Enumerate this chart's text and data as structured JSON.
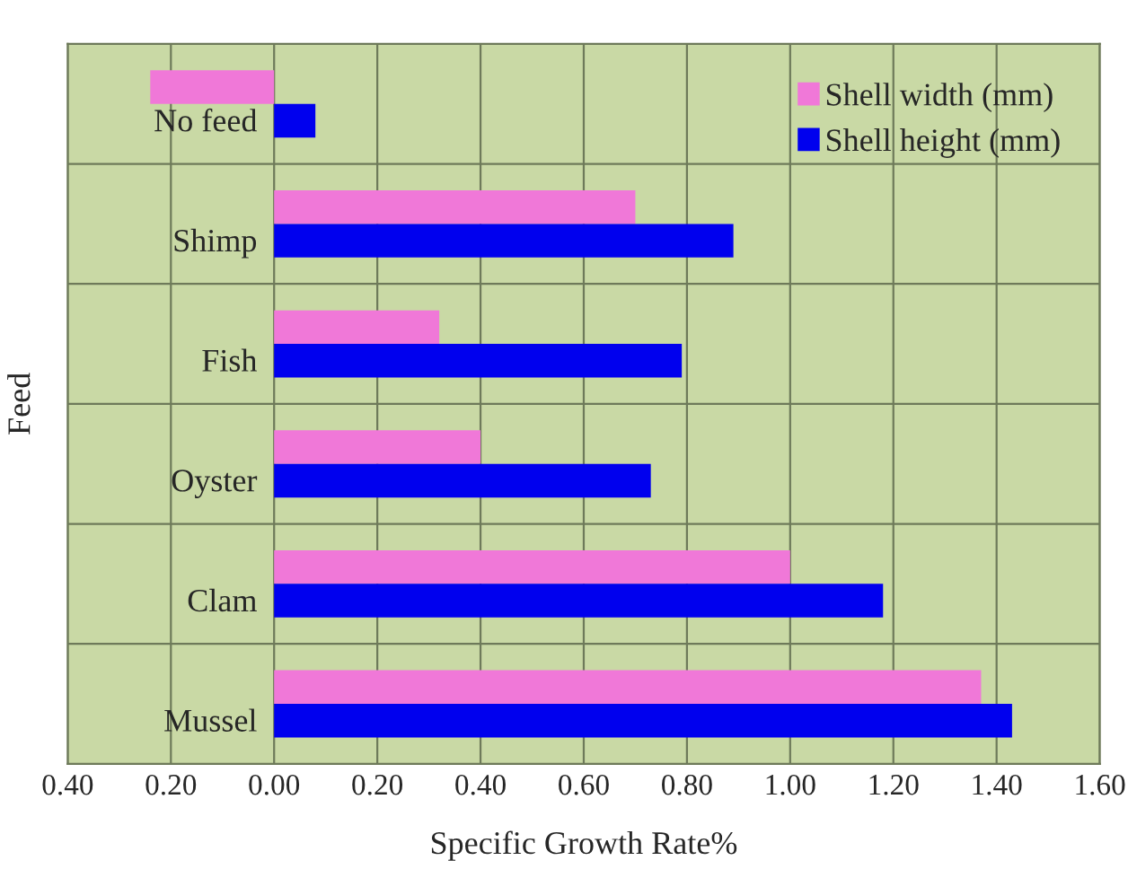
{
  "chart_data": {
    "type": "bar",
    "orientation": "horizontal",
    "xlabel": "Specific Growth Rate%",
    "ylabel": "Feed",
    "categories": [
      "No feed",
      "Shimp",
      "Fish",
      "Oyster",
      "Clam",
      "Mussel"
    ],
    "series": [
      {
        "name": "Shell width (mm)",
        "color": "#f078d8",
        "values": [
          -0.24,
          0.7,
          0.32,
          0.4,
          1.0,
          1.37
        ]
      },
      {
        "name": "Shell height (mm)",
        "color": "#0000ee",
        "values": [
          0.08,
          0.89,
          0.79,
          0.73,
          1.18,
          1.43
        ]
      }
    ],
    "xlim": [
      -0.4,
      1.6
    ],
    "xticks": [
      {
        "value": -0.4,
        "label": "0.40"
      },
      {
        "value": -0.2,
        "label": "0.20"
      },
      {
        "value": 0,
        "label": "0.00"
      },
      {
        "value": 0.2,
        "label": "0.20"
      },
      {
        "value": 0.4,
        "label": "0.40"
      },
      {
        "value": 0.6,
        "label": "0.60"
      },
      {
        "value": 0.8,
        "label": "0.80"
      },
      {
        "value": 1.0,
        "label": "1.00"
      },
      {
        "value": 1.2,
        "label": "1.20"
      },
      {
        "value": 1.4,
        "label": "1.40"
      },
      {
        "value": 1.6,
        "label": "1.60"
      }
    ],
    "grid": true,
    "legend": "top right"
  }
}
